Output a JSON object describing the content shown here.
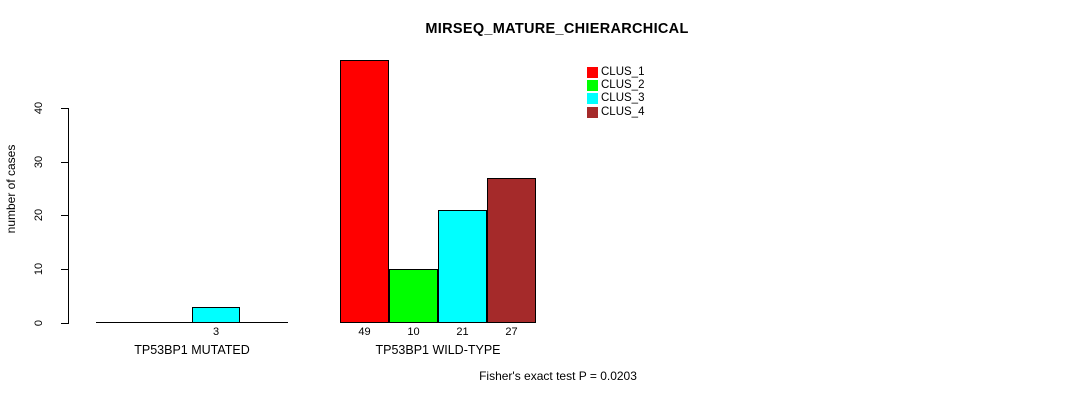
{
  "chart_data": {
    "type": "bar",
    "title": "MIRSEQ_MATURE_CHIERARCHICAL",
    "ylabel": "number of cases",
    "xlabel": "",
    "ylim": [
      0,
      40
    ],
    "yticks": [
      0,
      10,
      20,
      30,
      40
    ],
    "grid": false,
    "legend_position": "top-center",
    "series": [
      {
        "name": "CLUS_1",
        "color": "#FF0000"
      },
      {
        "name": "CLUS_2",
        "color": "#00FF00"
      },
      {
        "name": "CLUS_3",
        "color": "#00FFFF"
      },
      {
        "name": "CLUS_4",
        "color": "#A52A2A"
      }
    ],
    "groups": [
      {
        "label": "TP53BP1 MUTATED",
        "values": [
          0,
          0,
          3,
          0
        ]
      },
      {
        "label": "TP53BP1 WILD-TYPE",
        "values": [
          49,
          10,
          21,
          27
        ]
      }
    ],
    "bar_value_labels_shown": true,
    "annotation": "Fisher's exact test P = 0.0203"
  },
  "colors": {
    "axis": "#000000",
    "background": "#FFFFFF"
  }
}
